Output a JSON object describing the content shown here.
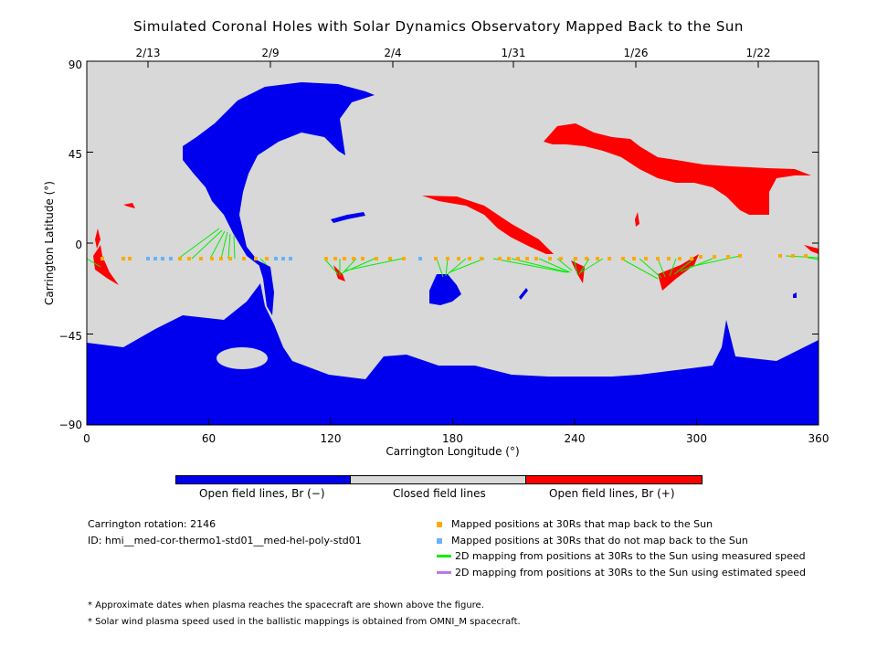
{
  "title": "Simulated Coronal Holes with Solar Dynamics Observatory Mapped Back to the Sun",
  "axes": {
    "x_label": "Carrington Longitude (°)",
    "y_label": "Carrington Latitude (°)",
    "x_ticks": [
      "0",
      "60",
      "120",
      "180",
      "240",
      "300",
      "360"
    ],
    "y_ticks": [
      "90",
      "45",
      "0",
      "−45",
      "−90"
    ],
    "top_dates": [
      "2/13",
      "2/9",
      "2/4",
      "1/31",
      "1/26",
      "1/22"
    ]
  },
  "colorbar": {
    "labels": [
      "Open field lines, Br (−)",
      "Closed field lines",
      "Open field lines, Br (+)"
    ],
    "colors": [
      "#0000ee",
      "#d8d8d8",
      "#ff0000"
    ]
  },
  "info": {
    "carrington_rotation": "Carrington rotation: 2146",
    "id": "ID: hmi__med-cor-thermo1-std01__med-hel-poly-std01"
  },
  "legend": [
    {
      "label": "Mapped positions at 30Rs that map back to the Sun",
      "color": "#ffaa00",
      "kind": "marker"
    },
    {
      "label": "Mapped positions at 30Rs that do not map back to the Sun",
      "color": "#66b3ff",
      "kind": "marker"
    },
    {
      "label": "2D mapping from positions at 30Rs to the Sun using measured speed",
      "color": "#00ee00",
      "kind": "line"
    },
    {
      "label": "2D mapping from positions at 30Rs to the Sun using estimated speed",
      "color": "#bb77ee",
      "kind": "line"
    }
  ],
  "notes": [
    "* Approximate dates when plasma reaches the spacecraft are shown above the figure.",
    "* Solar wind plasma speed used in the ballistic mappings is obtained from OMNI_M spacecraft."
  ]
}
